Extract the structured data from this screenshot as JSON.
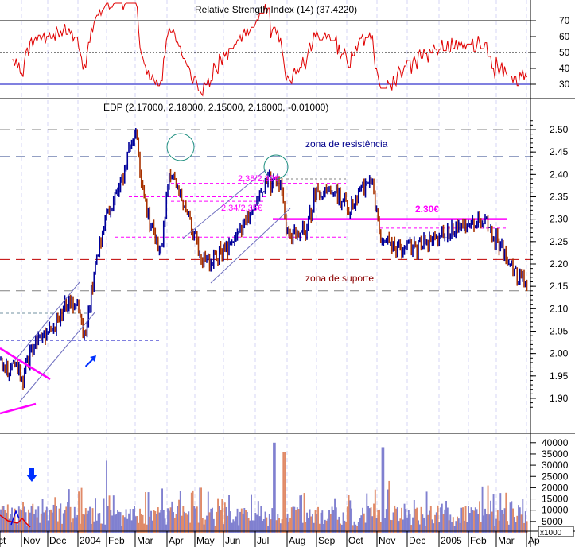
{
  "chart_data": {
    "type": "bar",
    "subtype": "ohlc-stock-chart",
    "title": "EDP (2.17000, 2.18000, 2.15000, 2.16000, -0.01000)",
    "rsi_title": "Relative Strength Index (14) (37.4220)",
    "volume_unit": "x1000",
    "x_ticks": [
      "ct",
      "Nov",
      "Dec",
      "2004",
      "Feb",
      "Mar",
      "Apr",
      "May",
      "Jun",
      "Jul",
      "Aug",
      "Sep",
      "Oct",
      "Nov",
      "Dec",
      "2005",
      "Feb",
      "Mar",
      "Ap"
    ],
    "price_axis": {
      "ylim": [
        1.87,
        2.53
      ],
      "ticks": [
        "2.50",
        "2.45",
        "2.40",
        "2.35",
        "2.30",
        "2.25",
        "2.20",
        "2.15",
        "2.10",
        "2.05",
        "2.00",
        "1.95",
        "1.90"
      ]
    },
    "rsi_axis": {
      "ylim": [
        20,
        80
      ],
      "ticks": [
        "70",
        "60",
        "50",
        "40",
        "30"
      ],
      "levels": [
        70,
        50,
        30
      ]
    },
    "volume_axis": {
      "ylim": [
        0,
        40000
      ],
      "ticks": [
        "40000",
        "35000",
        "30000",
        "25000",
        "20000",
        "15000",
        "10000",
        "5000"
      ]
    },
    "price_waypoints": [
      [
        0,
        1.99
      ],
      [
        0.9,
        1.96
      ],
      [
        1.05,
        1.94
      ],
      [
        1.5,
        2.02
      ],
      [
        2.1,
        2.05
      ],
      [
        2.8,
        2.13
      ],
      [
        3.1,
        2.06
      ],
      [
        3.3,
        2.05
      ],
      [
        3.6,
        2.2
      ],
      [
        4.0,
        2.3
      ],
      [
        4.5,
        2.38
      ],
      [
        5.0,
        2.5
      ],
      [
        5.3,
        2.33
      ],
      [
        5.8,
        2.22
      ],
      [
        6.1,
        2.41
      ],
      [
        6.4,
        2.37
      ],
      [
        6.8,
        2.3
      ],
      [
        7.2,
        2.22
      ],
      [
        7.5,
        2.2
      ],
      [
        8.2,
        2.24
      ],
      [
        8.7,
        2.3
      ],
      [
        9.4,
        2.38
      ],
      [
        9.8,
        2.38
      ],
      [
        10.0,
        2.27
      ],
      [
        10.6,
        2.27
      ],
      [
        11.0,
        2.36
      ],
      [
        11.6,
        2.36
      ],
      [
        12.1,
        2.32
      ],
      [
        12.8,
        2.4
      ],
      [
        13.1,
        2.26
      ],
      [
        13.6,
        2.23
      ],
      [
        14.4,
        2.24
      ],
      [
        15.2,
        2.27
      ],
      [
        16.0,
        2.28
      ],
      [
        16.5,
        2.3
      ],
      [
        16.9,
        2.26
      ],
      [
        17.3,
        2.22
      ],
      [
        17.7,
        2.17
      ],
      [
        18.0,
        2.16
      ]
    ],
    "volume_spikes": [
      [
        4.0,
        32000
      ],
      [
        5.4,
        18000
      ],
      [
        7.2,
        20000
      ],
      [
        9.6,
        40000
      ],
      [
        9.9,
        36000
      ],
      [
        10.5,
        17000
      ],
      [
        13.2,
        38000
      ],
      [
        13.4,
        23000
      ],
      [
        16.7,
        21000
      ],
      [
        17.5,
        14000
      ]
    ],
    "annotations": {
      "resistance_label": "zona de resistência",
      "support_label": "zona de suporte",
      "level_230": "2.30€",
      "level_238": "2,38/2,39€",
      "level_234": "2,34/2,35€"
    },
    "colors": {
      "up": "#00009a",
      "down": "#a83200",
      "vol_up": "#8080d0",
      "vol_down": "#e08a68",
      "rsi": "#e00000",
      "magenta": "#ff00ff"
    }
  }
}
